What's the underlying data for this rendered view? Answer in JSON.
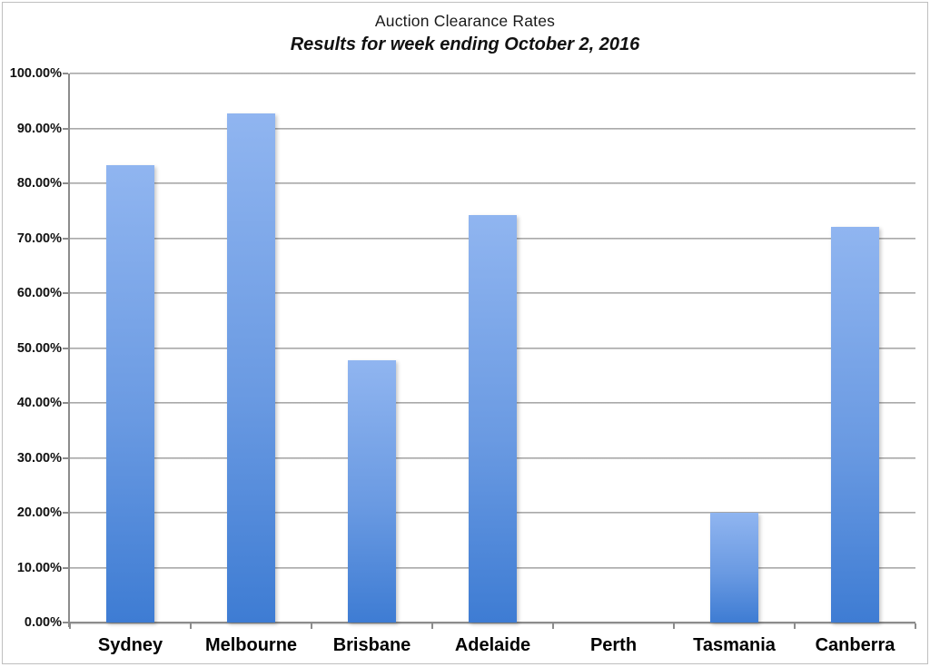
{
  "chart_data": {
    "type": "bar",
    "title": "Auction Clearance Rates",
    "subtitle": "Results for week ending October 2, 2016",
    "categories": [
      "Sydney",
      "Melbourne",
      "Brisbane",
      "Adelaide",
      "Perth",
      "Tasmania",
      "Canberra"
    ],
    "values": [
      83.3,
      92.8,
      47.8,
      74.2,
      0.0,
      20.0,
      72.0
    ],
    "xlabel": "",
    "ylabel": "",
    "ylim": [
      0,
      100
    ],
    "ytick_step": 10,
    "ytick_labels": [
      "0.00%",
      "10.00%",
      "20.00%",
      "30.00%",
      "40.00%",
      "50.00%",
      "60.00%",
      "70.00%",
      "80.00%",
      "90.00%",
      "100.00%"
    ],
    "grid": true,
    "legend_position": "none",
    "bar_color_top": "#90b5f0",
    "bar_color_bottom": "#3e7cd3",
    "gridline_color": "#9b9b9b",
    "axis_color": "#8c8c8c"
  }
}
